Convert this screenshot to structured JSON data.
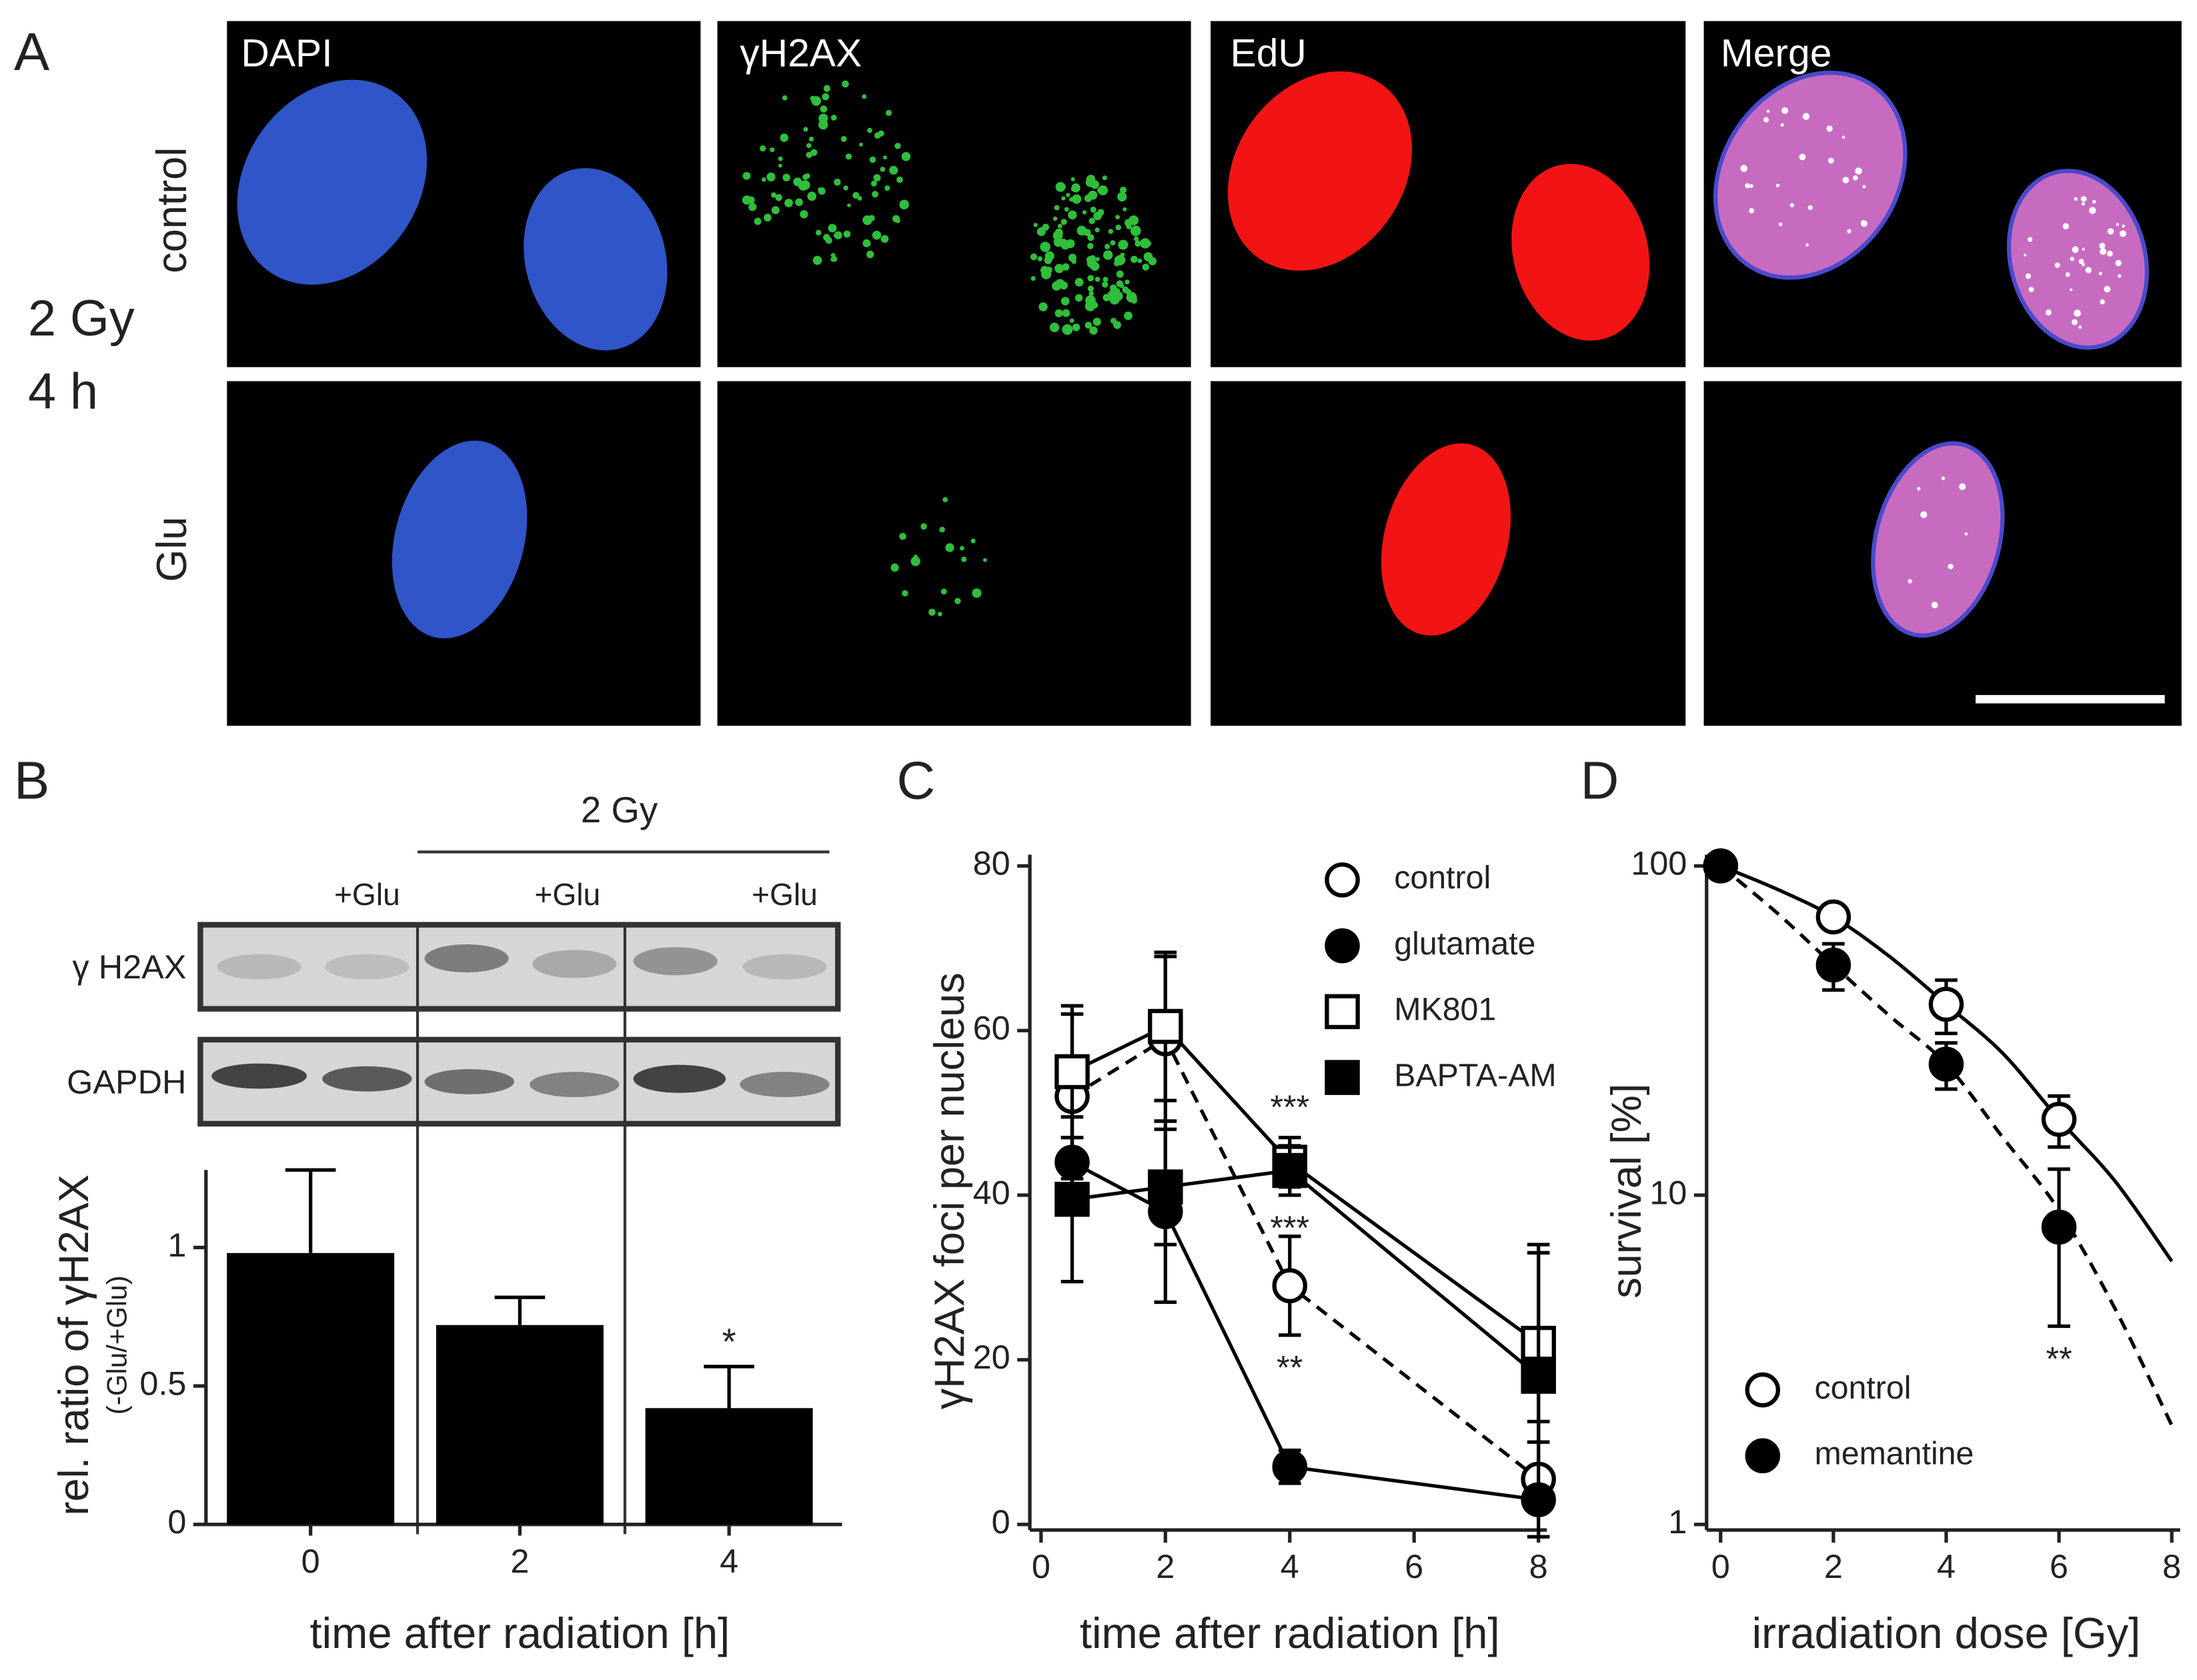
{
  "figure": {
    "panel_labels": [
      "A",
      "B",
      "C",
      "D"
    ],
    "panel_a": {
      "condition": [
        "2 Gy",
        "4 h"
      ],
      "row_labels": [
        "control",
        "Glu"
      ],
      "column_labels": [
        "DAPI",
        "γH2AX",
        "EdU",
        "Merge"
      ]
    },
    "panel_b_blot": {
      "group_label": "2 Gy",
      "lane_labels": [
        "+Glu",
        "+Glu",
        "+Glu"
      ],
      "row_labels": [
        "γ H2AX",
        "GAPDH"
      ]
    }
  },
  "chart_data": [
    {
      "type": "bar",
      "ylabel": "rel. ratio of γH2AX",
      "ylabel_sub": "(-Glu/+Glu)",
      "xlabel": "time after radiation [h]",
      "categories": [
        "0",
        "2",
        "4"
      ],
      "values": [
        0.98,
        0.72,
        0.42
      ],
      "errors": [
        0.3,
        0.1,
        0.15
      ],
      "significance": [
        null,
        null,
        "*"
      ],
      "color": "#000000",
      "ylim": [
        0,
        1.28
      ],
      "yticks": [
        0,
        0.5,
        1
      ]
    },
    {
      "type": "line",
      "ylabel": "γH2AX foci per nucleus",
      "xlabel": "time after radiation [h]",
      "x": [
        0.5,
        2,
        4,
        8
      ],
      "xlim": [
        0,
        8
      ],
      "xticks": [
        0,
        2,
        4,
        6,
        8
      ],
      "ylim": [
        0,
        80
      ],
      "yticks": [
        0,
        20,
        40,
        60,
        80
      ],
      "legend": "upper right",
      "series": [
        {
          "name": "control",
          "color": "#000000",
          "marker": "circle",
          "marker_fill": "open",
          "line_style": "dashed",
          "values": [
            52,
            59,
            29,
            5.5
          ],
          "errors": [
            10,
            10,
            6,
            7
          ],
          "significance": [
            null,
            null,
            "**",
            null
          ],
          "significance_position": "below"
        },
        {
          "name": "glutamate",
          "color": "#000000",
          "marker": "circle",
          "marker_fill": "filled",
          "line_style": "solid",
          "values": [
            44,
            38,
            7,
            3
          ],
          "errors": [
            3,
            11,
            2,
            1
          ]
        },
        {
          "name": "MK801",
          "color": "#000000",
          "marker": "square",
          "marker_fill": "open",
          "line_style": "solid",
          "values": [
            55,
            60.5,
            44,
            22
          ],
          "errors": [
            8,
            9,
            3,
            12
          ],
          "significance": [
            null,
            null,
            "***",
            null
          ],
          "significance_position": "above"
        },
        {
          "name": "BAPTA-AM",
          "color": "#000000",
          "marker": "square",
          "marker_fill": "filled",
          "line_style": "solid",
          "values": [
            39.5,
            41,
            43,
            18
          ],
          "errors": [
            10,
            7,
            3,
            15
          ],
          "significance": [
            null,
            null,
            "***",
            null
          ],
          "significance_position": "below"
        }
      ]
    },
    {
      "type": "scatter",
      "ylabel": "survival [%]",
      "xlabel": "irradiation dose [Gy]",
      "log_y": true,
      "x": [
        0,
        2,
        4,
        6
      ],
      "xlim": [
        0,
        8
      ],
      "xticks": [
        0,
        2,
        4,
        6,
        8
      ],
      "ylim": [
        1,
        100
      ],
      "yticks": [
        1,
        10,
        100
      ],
      "legend": "lower left",
      "fit_x": [
        0,
        1,
        2,
        3,
        4,
        5,
        6,
        7,
        8
      ],
      "series": [
        {
          "name": "control",
          "color": "#000000",
          "marker": "circle",
          "marker_fill": "open",
          "line_style": "solid",
          "values": [
            100,
            70,
            38,
            17
          ],
          "errors": [
            0,
            4,
            7,
            3
          ],
          "fit_values": [
            100,
            85,
            70,
            53,
            38,
            27,
            17,
            11,
            6.3
          ]
        },
        {
          "name": "memantine",
          "color": "#000000",
          "marker": "circle",
          "marker_fill": "filled",
          "line_style": "dashed",
          "values": [
            100,
            50,
            25,
            8
          ],
          "errors": [
            0,
            8,
            4,
            4
          ],
          "fit_values": [
            100,
            72,
            50,
            35,
            25,
            15,
            9,
            4.5,
            2
          ],
          "significance": [
            null,
            null,
            null,
            "**"
          ],
          "significance_position": "below"
        }
      ]
    }
  ]
}
